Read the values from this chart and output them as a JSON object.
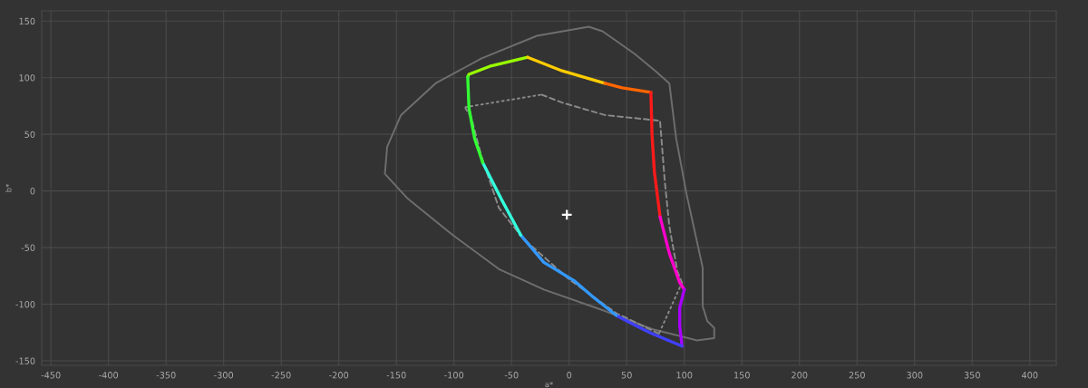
{
  "chart_data": {
    "type": "line",
    "xlabel": "a*",
    "ylabel": "b*",
    "xlim": [
      -458,
      423
    ],
    "ylim": [
      -154,
      159
    ],
    "xticks": [
      -450,
      -400,
      -350,
      -300,
      -250,
      -200,
      -150,
      -100,
      -50,
      0,
      50,
      100,
      150,
      200,
      250,
      300,
      350,
      400
    ],
    "yticks": [
      -150,
      -100,
      -50,
      0,
      50,
      100,
      150
    ],
    "grid": true,
    "series": [
      {
        "color": "#6e6e6e",
        "line_style": "solid",
        "x": [
          -160,
          -158,
          -146,
          -116,
          -76,
          -28,
          17,
          29,
          57,
          76,
          87,
          93,
          102,
          116,
          116,
          120,
          126,
          126,
          111,
          72,
          31,
          -22,
          -61,
          -101,
          -140,
          -159
        ],
        "values": [
          15,
          39,
          67,
          95,
          117,
          137,
          145,
          141,
          121,
          105,
          95,
          46,
          -3,
          -68,
          -102,
          -115,
          -121,
          -130,
          -132,
          -122,
          -106,
          -87,
          -69,
          -39,
          -7,
          14
        ]
      },
      {
        "color": "#8a8a8a",
        "line_style": "dotted",
        "x": [
          -90,
          -24
        ],
        "values": [
          74,
          85
        ]
      },
      {
        "color": "#8a8a8a",
        "line_style": "dashed",
        "x": [
          -24,
          -6,
          31,
          79,
          79,
          83,
          87,
          94,
          98
        ],
        "values": [
          85,
          78,
          67,
          62,
          61,
          9,
          -31,
          -71,
          -81
        ]
      },
      {
        "color": "#8a8a8a",
        "line_style": "dotted",
        "x": [
          98,
          78
        ],
        "values": [
          -81,
          -126
        ]
      },
      {
        "color": "#8a8a8a",
        "line_style": "dashed",
        "x": [
          78,
          41,
          0,
          -40,
          -61,
          -67,
          -76,
          -85,
          -90
        ],
        "values": [
          -126,
          -108,
          -78,
          -42,
          -15,
          3,
          30,
          65,
          73
        ]
      },
      {
        "color": "#99ff00",
        "line_style": "solid",
        "x": [
          -88,
          -87,
          -69,
          -36
        ],
        "values": [
          101,
          103,
          110,
          118
        ]
      },
      {
        "color": "#ffcc00",
        "line_style": "solid",
        "x": [
          -36,
          -6,
          31
        ],
        "values": [
          118,
          106,
          95
        ]
      },
      {
        "color": "#ff6600",
        "line_style": "solid",
        "x": [
          31,
          46,
          71
        ],
        "values": [
          95,
          91,
          87
        ]
      },
      {
        "color": "#ff1a1a",
        "line_style": "solid",
        "x": [
          71,
          72,
          74,
          79
        ],
        "values": [
          87,
          49,
          17,
          -23
        ]
      },
      {
        "color": "#ff00cc",
        "line_style": "solid",
        "x": [
          79,
          87,
          96,
          100
        ],
        "values": [
          -23,
          -55,
          -81,
          -87
        ]
      },
      {
        "color": "#aa00ff",
        "line_style": "solid",
        "x": [
          100,
          96,
          96,
          98
        ],
        "values": [
          -87,
          -103,
          -119,
          -137
        ]
      },
      {
        "color": "#4040ff",
        "line_style": "solid",
        "x": [
          98,
          72,
          58,
          41
        ],
        "values": [
          -137,
          -126,
          -119,
          -110
        ]
      },
      {
        "color": "#3399ff",
        "line_style": "solid",
        "x": [
          41,
          20,
          4,
          -22,
          -42
        ],
        "values": [
          -110,
          -93,
          -79,
          -63,
          -39
        ]
      },
      {
        "color": "#33ffdd",
        "line_style": "solid",
        "x": [
          -42,
          -59,
          -64,
          -75
        ],
        "values": [
          -39,
          -7,
          3,
          25
        ]
      },
      {
        "color": "#33ff33",
        "line_style": "solid",
        "x": [
          -75,
          -82,
          -87,
          -88,
          -88
        ],
        "values": [
          25,
          46,
          73,
          99,
          101
        ]
      },
      {
        "type": "scatter",
        "color": "#ffffff",
        "marker": "cross",
        "x": [
          -2
        ],
        "values": [
          -21
        ]
      }
    ]
  }
}
